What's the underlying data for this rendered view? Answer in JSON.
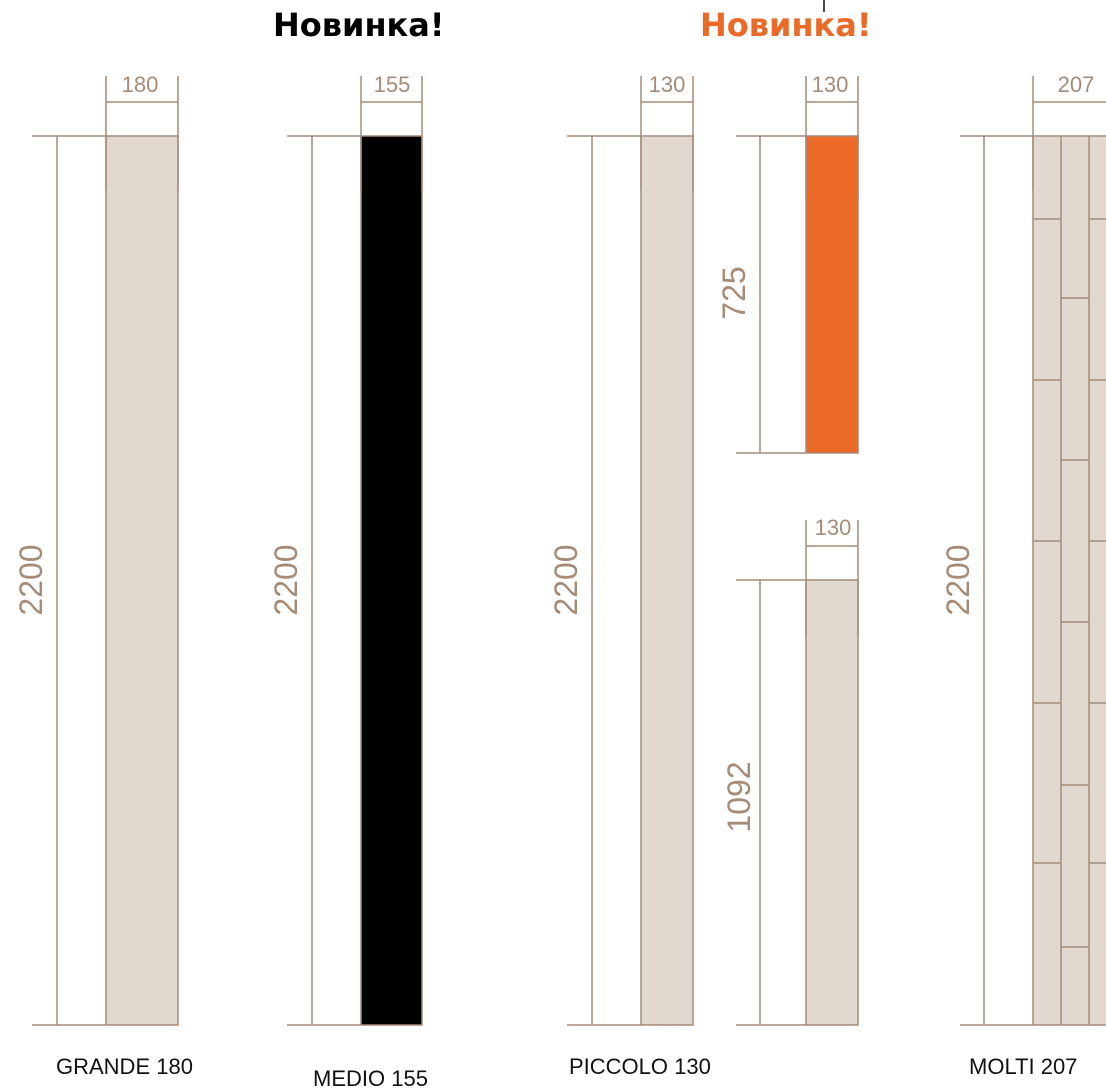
{
  "badges": {
    "new_black": "Новинка!",
    "new_orange": "Новинка!"
  },
  "captions": {
    "grande": "GRANDE 180",
    "medio": "MEDIO 155",
    "piccolo": "PICCOLO 130",
    "molti": "MOLTI 207"
  },
  "dims": {
    "grande_w": "180",
    "grande_h": "2200",
    "medio_w": "155",
    "medio_h": "2200",
    "piccolo_w": "130",
    "piccolo_h": "2200",
    "small_top_w": "130",
    "small_top_h": "725",
    "small_bottom_w": "130",
    "small_bottom_h": "1092",
    "molti_w": "207",
    "molti_h": "2200"
  },
  "colors": {
    "line": "#a68b76",
    "beige": "#e1d9cf",
    "black": "#000000",
    "orange": "#ec6a27"
  }
}
